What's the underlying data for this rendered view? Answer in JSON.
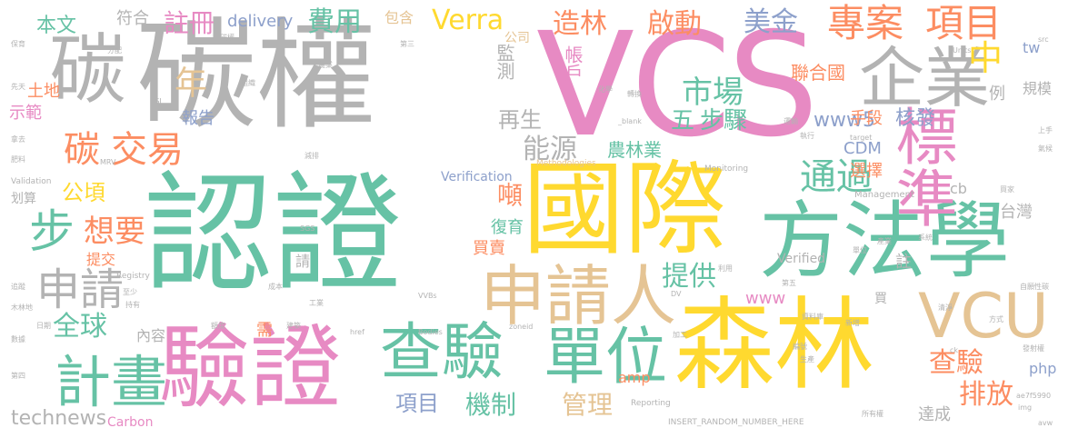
{
  "palette": {
    "gray": "#b3b3b3",
    "green": "#66c2a5",
    "yellow": "#ffd92f",
    "pink": "#e78ac3",
    "orange": "#fc8d62",
    "blue": "#8da0cb",
    "lime": "#a6d854",
    "tan": "#e5c494"
  },
  "words": [
    "VCS",
    "碳權",
    "認證",
    "國際",
    "方法學",
    "森林",
    "驗證",
    "碳",
    "企業",
    "標準",
    "申請人",
    "查驗",
    "單位",
    "計畫",
    "VCU",
    "步",
    "申請",
    "專案",
    "項目",
    "交易",
    "碳",
    "通過",
    "市場",
    "中",
    "想要",
    "能源",
    "美金",
    "造林",
    "Verra",
    "費用",
    "註冊",
    "啟動",
    "年",
    "全球",
    "五",
    "步驟",
    "提供",
    "公頃",
    "查驗",
    "排放",
    "機制",
    "管理",
    "項目",
    "technews",
    "Carbon",
    "www5",
    "核發",
    "手段",
    "報告",
    "聯合國",
    "農林業",
    "帳戶",
    "監測",
    "再生",
    "噸",
    "復育",
    "買賣",
    "CDM",
    "選擇",
    "台灣",
    "www",
    "amp",
    "內容",
    "需",
    "示範",
    "土地",
    "本文",
    "符合",
    "delivery",
    "包含",
    "公司",
    "規模",
    "php",
    "達成",
    "Verification",
    "Verified",
    "cb",
    "tw",
    "例",
    "提交",
    "划算",
    "註",
    "請",
    "Methodologies",
    "Monitoring",
    "Management",
    "Registry",
    "Validation",
    "INSERT_RANDOM_NUMBER_HERE",
    "Reporting",
    "Bodies",
    "VVBs",
    "href",
    "zoneid",
    "_blank",
    "Units",
    "target",
    "SGS",
    "MRV",
    "BSI",
    "ae7f5990",
    "img",
    "avw",
    "src",
    "ck",
    "DV",
    "成本",
    "所有權",
    "自願性碳",
    "木林地",
    "第四",
    "數據",
    "碳權",
    "先天",
    "肥料",
    "保育",
    "拿去",
    "分配",
    "組織",
    "農業",
    "第三",
    "減排",
    "化學",
    "轉換",
    "執行",
    "運輸",
    "上手",
    "氣候",
    "工業",
    "建築",
    "產業",
    "買家",
    "方式",
    "新增",
    "清淨",
    "資料庫",
    "發射權",
    "生產",
    "編號",
    "單位",
    "系統",
    "追蹤",
    "至少",
    "持有",
    "日期",
    "買",
    "第五",
    "利用",
    "額度",
    "加工"
  ]
}
